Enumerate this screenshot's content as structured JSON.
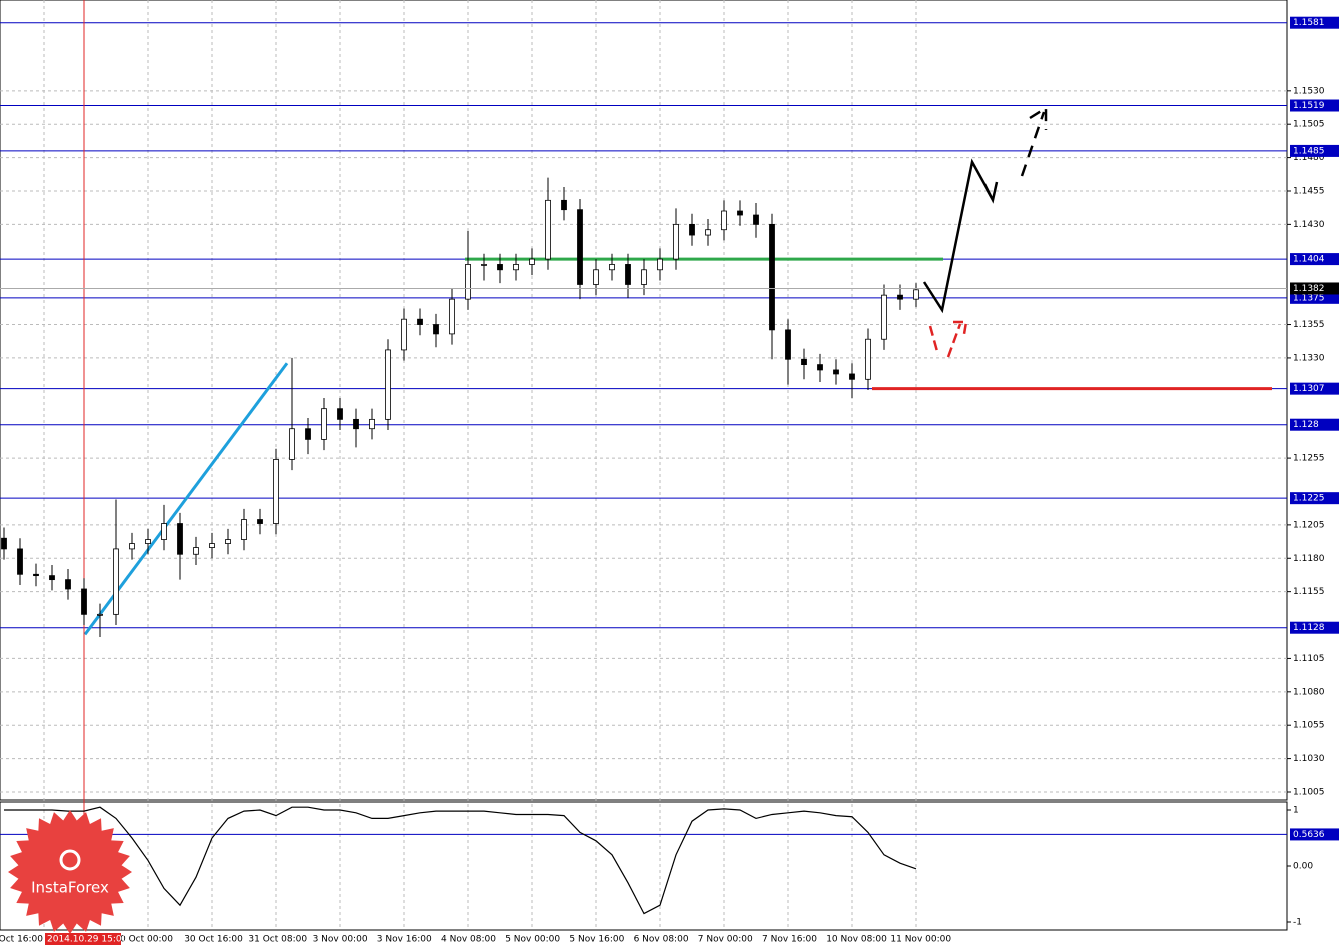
{
  "chart_data": [
    {
      "type": "candlestick",
      "open": [
        1.1195,
        1.1187,
        1.1168,
        1.1167,
        1.1164,
        1.1157,
        1.1138,
        1.1138,
        1.1187,
        1.1191,
        1.1194,
        1.1206,
        1.1183,
        1.1188,
        1.1191,
        1.1194,
        1.1209,
        1.1206,
        1.1254,
        1.1277,
        1.1269,
        1.1292,
        1.1284,
        1.1277,
        1.1284,
        1.1336,
        1.1359,
        1.1355,
        1.1348,
        1.1374,
        1.14,
        1.14,
        1.1396,
        1.14,
        1.1404,
        1.1448,
        1.1441,
        1.1385,
        1.1396,
        1.14,
        1.1385,
        1.1396,
        1.1404,
        1.143,
        1.1422,
        1.1426,
        1.144,
        1.1437,
        1.143,
        1.1351,
        1.1329,
        1.1325,
        1.1321,
        1.1318,
        1.1314,
        1.1344,
        1.1377,
        1.1374
      ],
      "high": [
        1.1203,
        1.1195,
        1.1176,
        1.1175,
        1.1172,
        1.1165,
        1.1146,
        1.1224,
        1.1199,
        1.1202,
        1.122,
        1.1214,
        1.1196,
        1.1199,
        1.1202,
        1.1217,
        1.1217,
        1.1262,
        1.133,
        1.1285,
        1.13,
        1.13,
        1.1292,
        1.1292,
        1.1344,
        1.1367,
        1.1367,
        1.1363,
        1.1382,
        1.1425,
        1.1408,
        1.1408,
        1.1408,
        1.1412,
        1.1465,
        1.1458,
        1.1449,
        1.1404,
        1.1408,
        1.1408,
        1.1404,
        1.1412,
        1.1442,
        1.1438,
        1.1434,
        1.1448,
        1.1448,
        1.1446,
        1.1438,
        1.1359,
        1.1337,
        1.1333,
        1.1329,
        1.1326,
        1.1352,
        1.1385,
        1.1385,
        1.1386
      ],
      "low": [
        1.1179,
        1.116,
        1.1159,
        1.1156,
        1.1149,
        1.113,
        1.1121,
        1.113,
        1.1179,
        1.1183,
        1.1186,
        1.1164,
        1.1175,
        1.118,
        1.1183,
        1.1186,
        1.1198,
        1.1198,
        1.1246,
        1.1258,
        1.1261,
        1.1276,
        1.1263,
        1.1269,
        1.1276,
        1.1328,
        1.1347,
        1.1338,
        1.134,
        1.1366,
        1.1388,
        1.1386,
        1.1388,
        1.1392,
        1.1396,
        1.1433,
        1.1374,
        1.1377,
        1.1388,
        1.1375,
        1.1377,
        1.1388,
        1.1396,
        1.1414,
        1.1414,
        1.1418,
        1.1429,
        1.142,
        1.1329,
        1.131,
        1.1314,
        1.1312,
        1.131,
        1.13,
        1.1306,
        1.1336,
        1.1366,
        1.1368
      ],
      "close": [
        1.1187,
        1.1168,
        1.1167,
        1.1164,
        1.1157,
        1.1138,
        1.1138,
        1.1187,
        1.1191,
        1.1194,
        1.1206,
        1.1183,
        1.1188,
        1.1191,
        1.1194,
        1.1209,
        1.1206,
        1.1254,
        1.1277,
        1.1269,
        1.1292,
        1.1284,
        1.1277,
        1.1284,
        1.1336,
        1.1359,
        1.1355,
        1.1348,
        1.1374,
        1.14,
        1.14,
        1.1396,
        1.14,
        1.1404,
        1.1448,
        1.1441,
        1.1385,
        1.1396,
        1.14,
        1.1385,
        1.1396,
        1.1404,
        1.143,
        1.1422,
        1.1426,
        1.144,
        1.1437,
        1.143,
        1.1351,
        1.1329,
        1.1325,
        1.1321,
        1.1318,
        1.1314,
        1.1344,
        1.1377,
        1.1374,
        1.1381
      ],
      "ylim": [
        1.0999,
        1.1598
      ],
      "yticks": [
        {
          "value": 1.153,
          "label": "1.1530"
        },
        1.1505,
        {
          "value": 1.148,
          "label": "1.1480"
        },
        1.1455,
        {
          "value": 1.143,
          "label": "1.1430"
        },
        1.1355,
        {
          "value": 1.133,
          "label": "1.1330"
        },
        1.1255,
        1.1205,
        {
          "value": 1.118,
          "label": "1.1180"
        },
        1.1155,
        1.1105,
        {
          "value": 1.108,
          "label": "1.1080"
        },
        1.1055,
        {
          "value": 1.103,
          "label": "1.1030"
        },
        1.1005
      ],
      "levels": [
        1.1581,
        1.1519,
        1.1485,
        1.1404,
        1.1375,
        1.1307,
        1.128,
        1.1225,
        1.1128
      ],
      "level_color": "#0000c0",
      "current_price": 1.1382,
      "green_line": 1.1404,
      "green_color": "#2ea84a",
      "red_line": 1.1307,
      "red_color": "#e02424",
      "trend_line": [
        1.1123,
        1.1326
      ],
      "trend_color": "#1ea0dc",
      "grid": true,
      "time_labels": [
        "Oct 16:00",
        "0 Oct 00:00",
        "30 Oct 16:00",
        "31 Oct 08:00",
        "3 Nov 00:00",
        "3 Nov 16:00",
        "4 Nov 08:00",
        "5 Nov 00:00",
        "5 Nov 16:00",
        "6 Nov 08:00",
        "7 Nov 00:00",
        "7 Nov 16:00",
        "10 Nov 08:00",
        "11 Nov 00:00"
      ],
      "crosshair_label": "2014.10.29 15:00"
    },
    {
      "type": "line",
      "values": [
        1.0,
        1.0,
        1.0,
        1.0,
        0.98,
        0.98,
        1.05,
        0.85,
        0.5,
        0.1,
        -0.4,
        -0.7,
        -0.2,
        0.5,
        0.85,
        0.98,
        1.0,
        0.9,
        1.05,
        1.05,
        1.0,
        1.0,
        0.95,
        0.85,
        0.85,
        0.9,
        0.95,
        0.98,
        0.98,
        0.98,
        0.98,
        0.95,
        0.92,
        0.92,
        0.92,
        0.9,
        0.6,
        0.45,
        0.2,
        -0.3,
        -0.85,
        -0.7,
        0.2,
        0.8,
        1.0,
        1.02,
        1.0,
        0.85,
        0.92,
        0.95,
        0.98,
        0.95,
        0.9,
        0.88,
        0.6,
        0.2,
        0.05,
        -0.05
      ],
      "ylim": [
        -1.143,
        1.125
      ],
      "yticks": [
        1,
        {
          "value": 0,
          "label": "0.00"
        },
        -1
      ],
      "level": 0.5636
    },
    {
      "logo": "InstaForex"
    }
  ]
}
